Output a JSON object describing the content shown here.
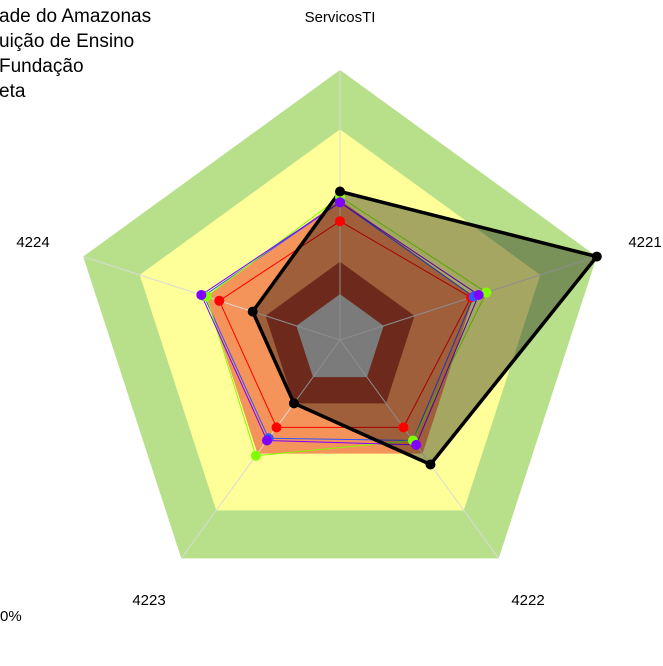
{
  "chart_data": {
    "type": "radar",
    "categories": [
      "ServicosTI",
      "4221",
      "4222",
      "4223",
      "4224"
    ],
    "rlim": [
      0,
      100
    ],
    "levels": [
      {
        "value": 100,
        "color": "#b8e08a"
      },
      {
        "value": 78,
        "color": "#ffff99"
      },
      {
        "value": 52,
        "color": "#f4935a"
      },
      {
        "value": 29,
        "color": "#a8412c"
      },
      {
        "value": 17,
        "color": "#bebebe"
      }
    ],
    "series": [
      {
        "name": "ade do Amazonas",
        "color": "#ff0000",
        "values": [
          44,
          51,
          40,
          40,
          47
        ]
      },
      {
        "name": "uição de Ensino",
        "color": "#3355ff",
        "values": [
          51,
          52,
          46,
          45,
          53
        ]
      },
      {
        "name": "Fundação",
        "color": "#7fff00",
        "values": [
          53,
          57,
          46,
          53,
          52
        ]
      },
      {
        "color": "#8000ff",
        "values": [
          51,
          54,
          48,
          46,
          54
        ]
      },
      {
        "name": "eta",
        "color": "#000000",
        "fill": true,
        "values": [
          55,
          100,
          57,
          29,
          34
        ]
      }
    ],
    "footnote": "0%"
  }
}
